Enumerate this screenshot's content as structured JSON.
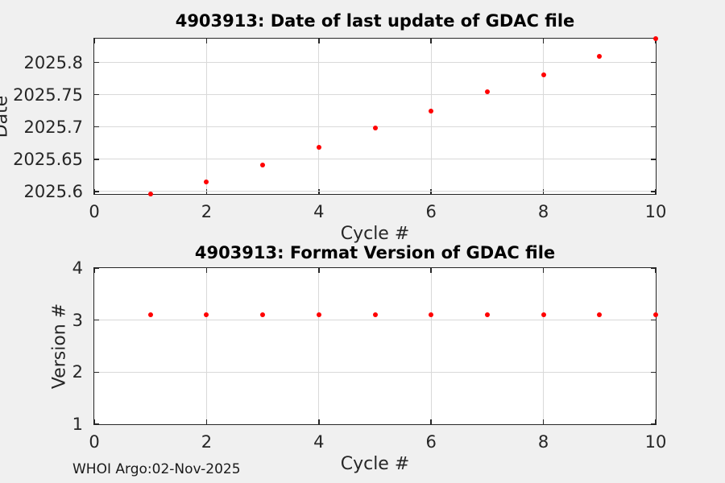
{
  "figure": {
    "background": "#f0f0f0",
    "watermark": "WHOI Argo:02-Nov-2025",
    "marker_color": "#ff0000",
    "grid_color": "#d9d9d9",
    "axis_color": "#262626"
  },
  "chart_data": [
    {
      "type": "scatter",
      "title": "4903913: Date of last update of GDAC file",
      "xlabel": "Cycle #",
      "ylabel": "Date",
      "x": [
        1,
        2,
        3,
        4,
        5,
        6,
        7,
        8,
        9,
        10
      ],
      "y": [
        2025.596,
        2025.615,
        2025.641,
        2025.669,
        2025.698,
        2025.725,
        2025.754,
        2025.781,
        2025.81,
        2025.837
      ],
      "xlim": [
        0,
        10
      ],
      "ylim": [
        2025.596,
        2025.837
      ],
      "xticks": [
        0,
        2,
        4,
        6,
        8,
        10
      ],
      "xtick_labels": [
        "0",
        "2",
        "4",
        "6",
        "8",
        "10"
      ],
      "yticks": [
        2025.6,
        2025.65,
        2025.7,
        2025.75,
        2025.8
      ],
      "ytick_labels": [
        "2025.6",
        "2025.65",
        "2025.7",
        "2025.75",
        "2025.8"
      ],
      "grid": true,
      "legend": null,
      "marker": "dot",
      "marker_color": "#ff0000"
    },
    {
      "type": "scatter",
      "title": "4903913: Format Version of GDAC file",
      "xlabel": "Cycle #",
      "ylabel": "Version #",
      "x": [
        1,
        2,
        3,
        4,
        5,
        6,
        7,
        8,
        9,
        10
      ],
      "y": [
        3.1,
        3.1,
        3.1,
        3.1,
        3.1,
        3.1,
        3.1,
        3.1,
        3.1,
        3.1
      ],
      "xlim": [
        0,
        10
      ],
      "ylim": [
        1,
        4
      ],
      "xticks": [
        0,
        2,
        4,
        6,
        8,
        10
      ],
      "xtick_labels": [
        "0",
        "2",
        "4",
        "6",
        "8",
        "10"
      ],
      "yticks": [
        1,
        2,
        3,
        4
      ],
      "ytick_labels": [
        "1",
        "2",
        "3",
        "4"
      ],
      "grid": true,
      "legend": null,
      "marker": "dot",
      "marker_color": "#ff0000"
    }
  ]
}
